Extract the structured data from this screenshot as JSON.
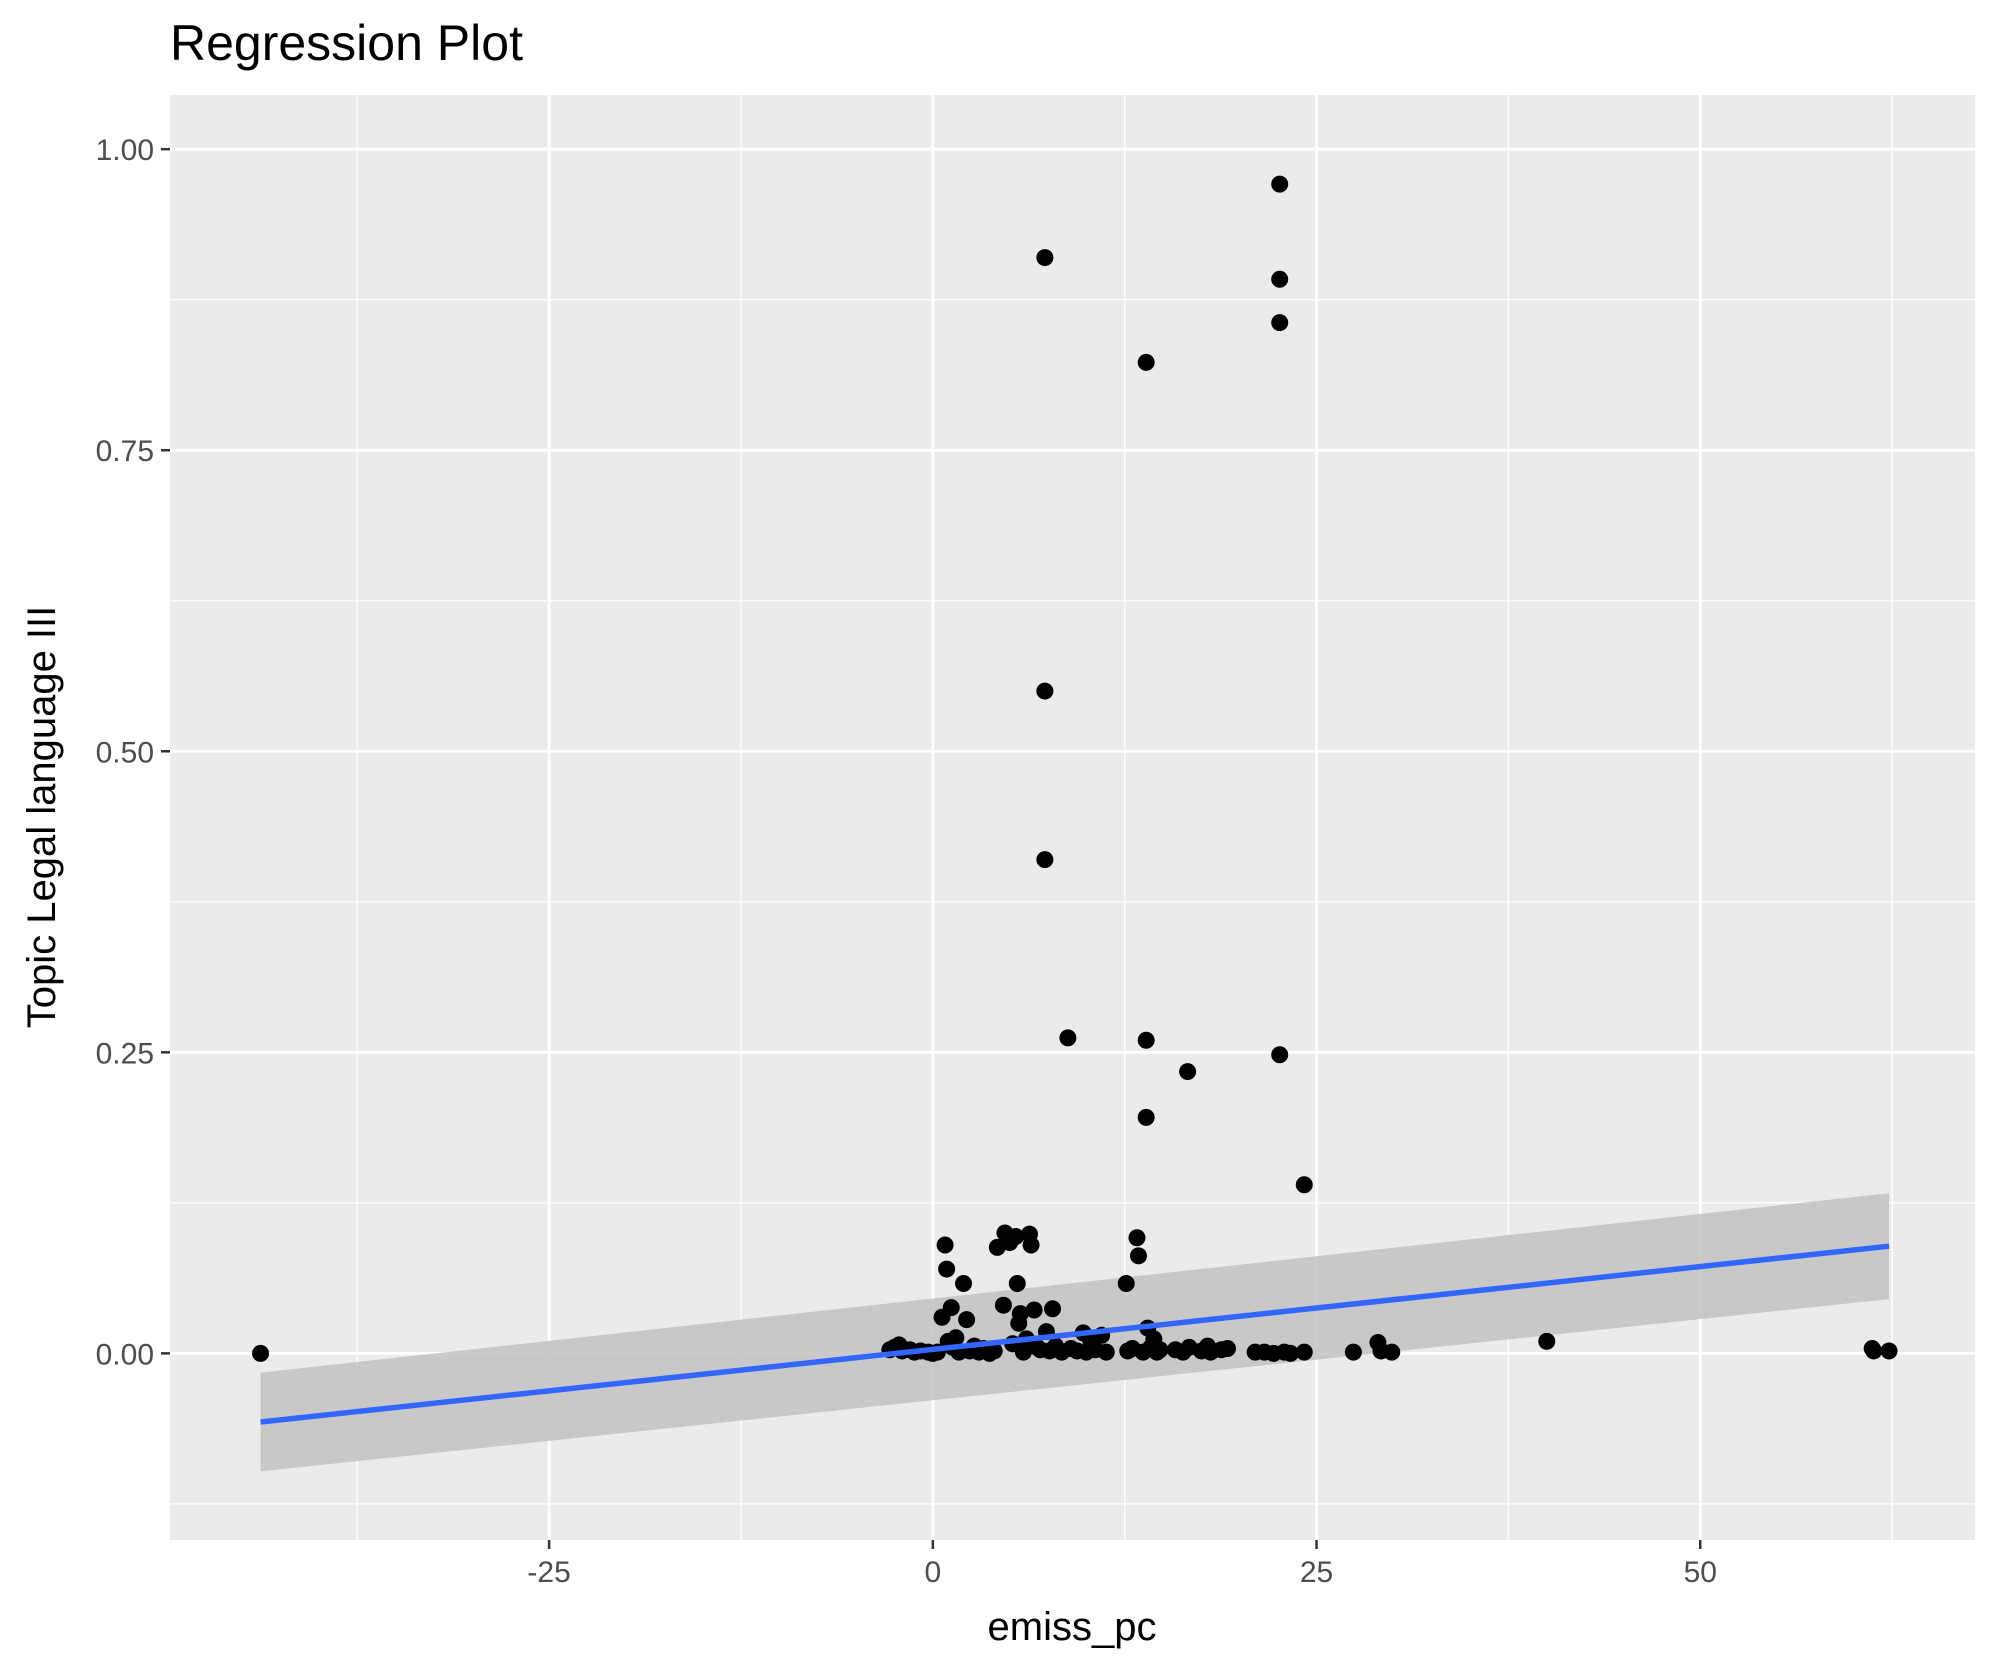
{
  "chart_data": {
    "type": "scatter",
    "title": "Regression Plot",
    "xlabel": "emiss_pc",
    "ylabel": "Topic Legal language III",
    "xlim": [
      -49.7,
      67.9
    ],
    "ylim": [
      -0.155,
      1.045
    ],
    "x_ticks": [
      -25,
      0,
      25,
      50
    ],
    "x_tick_labels": [
      "-25",
      "0",
      "25",
      "50"
    ],
    "x_minor_ticks": [
      -37.5,
      -12.5,
      12.5,
      37.5,
      62.5
    ],
    "y_ticks": [
      0,
      0.25,
      0.5,
      0.75,
      1
    ],
    "y_tick_labels": [
      "0.00",
      "0.25",
      "0.50",
      "0.75",
      "1.00"
    ],
    "y_minor_ticks": [
      -0.125,
      0.125,
      0.375,
      0.625,
      0.875
    ],
    "grid": true,
    "colors": {
      "panel_background": "#ebebeb",
      "grid_line": "#ffffff",
      "points": "#000000",
      "regression_line": "#3366ff",
      "confidence_band": "#c4c4c4"
    },
    "points": [
      {
        "x": -43.8,
        "y": 0.0
      },
      {
        "x": -2.8,
        "y": 0.003
      },
      {
        "x": -2.5,
        "y": 0.005
      },
      {
        "x": -2.2,
        "y": 0.007
      },
      {
        "x": -2.0,
        "y": 0.002
      },
      {
        "x": -1.5,
        "y": 0.003
      },
      {
        "x": -1.2,
        "y": 0.001
      },
      {
        "x": -0.8,
        "y": 0.002
      },
      {
        "x": -0.3,
        "y": 0.001
      },
      {
        "x": 0.0,
        "y": 0.0
      },
      {
        "x": 0.3,
        "y": 0.001
      },
      {
        "x": 0.6,
        "y": 0.03
      },
      {
        "x": 0.8,
        "y": 0.09
      },
      {
        "x": 0.9,
        "y": 0.07
      },
      {
        "x": 1.0,
        "y": 0.01
      },
      {
        "x": 1.2,
        "y": 0.038
      },
      {
        "x": 1.3,
        "y": 0.005
      },
      {
        "x": 1.5,
        "y": 0.013
      },
      {
        "x": 1.7,
        "y": 0.001
      },
      {
        "x": 2.0,
        "y": 0.058
      },
      {
        "x": 2.2,
        "y": 0.028
      },
      {
        "x": 2.4,
        "y": 0.002
      },
      {
        "x": 2.7,
        "y": 0.006
      },
      {
        "x": 3.0,
        "y": 0.001
      },
      {
        "x": 3.3,
        "y": 0.004
      },
      {
        "x": 3.7,
        "y": 0.0
      },
      {
        "x": 4.0,
        "y": 0.002
      },
      {
        "x": 4.2,
        "y": 0.088
      },
      {
        "x": 4.6,
        "y": 0.04
      },
      {
        "x": 4.7,
        "y": 0.1
      },
      {
        "x": 5.0,
        "y": 0.092
      },
      {
        "x": 5.2,
        "y": 0.008
      },
      {
        "x": 5.4,
        "y": 0.097
      },
      {
        "x": 5.5,
        "y": 0.058
      },
      {
        "x": 5.6,
        "y": 0.025
      },
      {
        "x": 5.7,
        "y": 0.033
      },
      {
        "x": 5.9,
        "y": 0.001
      },
      {
        "x": 6.1,
        "y": 0.012
      },
      {
        "x": 6.3,
        "y": 0.099
      },
      {
        "x": 6.4,
        "y": 0.09
      },
      {
        "x": 6.6,
        "y": 0.036
      },
      {
        "x": 6.8,
        "y": 0.005
      },
      {
        "x": 7.0,
        "y": 0.003
      },
      {
        "x": 7.3,
        "y": 0.91
      },
      {
        "x": 7.3,
        "y": 0.55
      },
      {
        "x": 7.3,
        "y": 0.41
      },
      {
        "x": 7.4,
        "y": 0.018
      },
      {
        "x": 7.6,
        "y": 0.002
      },
      {
        "x": 7.8,
        "y": 0.037
      },
      {
        "x": 8.0,
        "y": 0.006
      },
      {
        "x": 8.4,
        "y": 0.001
      },
      {
        "x": 8.8,
        "y": 0.262
      },
      {
        "x": 9.0,
        "y": 0.004
      },
      {
        "x": 9.4,
        "y": 0.002
      },
      {
        "x": 9.8,
        "y": 0.017
      },
      {
        "x": 10.0,
        "y": 0.001
      },
      {
        "x": 10.3,
        "y": 0.01
      },
      {
        "x": 10.6,
        "y": 0.003
      },
      {
        "x": 11.0,
        "y": 0.015
      },
      {
        "x": 11.3,
        "y": 0.001
      },
      {
        "x": 12.6,
        "y": 0.058
      },
      {
        "x": 12.7,
        "y": 0.002
      },
      {
        "x": 13.0,
        "y": 0.004
      },
      {
        "x": 13.3,
        "y": 0.096
      },
      {
        "x": 13.4,
        "y": 0.081
      },
      {
        "x": 13.7,
        "y": 0.001
      },
      {
        "x": 13.9,
        "y": 0.823
      },
      {
        "x": 13.9,
        "y": 0.26
      },
      {
        "x": 13.9,
        "y": 0.196
      },
      {
        "x": 14.0,
        "y": 0.021
      },
      {
        "x": 14.2,
        "y": 0.005
      },
      {
        "x": 14.4,
        "y": 0.012
      },
      {
        "x": 14.6,
        "y": 0.001
      },
      {
        "x": 14.8,
        "y": 0.003
      },
      {
        "x": 15.8,
        "y": 0.003
      },
      {
        "x": 16.3,
        "y": 0.001
      },
      {
        "x": 16.6,
        "y": 0.234
      },
      {
        "x": 16.7,
        "y": 0.005
      },
      {
        "x": 17.5,
        "y": 0.002
      },
      {
        "x": 17.9,
        "y": 0.006
      },
      {
        "x": 18.1,
        "y": 0.001
      },
      {
        "x": 18.8,
        "y": 0.003
      },
      {
        "x": 19.2,
        "y": 0.004
      },
      {
        "x": 21.0,
        "y": 0.001
      },
      {
        "x": 21.6,
        "y": 0.001
      },
      {
        "x": 22.2,
        "y": 0.0
      },
      {
        "x": 22.6,
        "y": 0.971
      },
      {
        "x": 22.6,
        "y": 0.892
      },
      {
        "x": 22.6,
        "y": 0.856
      },
      {
        "x": 22.6,
        "y": 0.248
      },
      {
        "x": 22.9,
        "y": 0.001
      },
      {
        "x": 23.3,
        "y": 0.0
      },
      {
        "x": 24.2,
        "y": 0.14
      },
      {
        "x": 24.2,
        "y": 0.001
      },
      {
        "x": 27.4,
        "y": 0.001
      },
      {
        "x": 29.0,
        "y": 0.009
      },
      {
        "x": 29.2,
        "y": 0.002
      },
      {
        "x": 29.9,
        "y": 0.001
      },
      {
        "x": 40.0,
        "y": 0.01
      },
      {
        "x": 61.2,
        "y": 0.004
      },
      {
        "x": 61.3,
        "y": 0.002
      },
      {
        "x": 62.3,
        "y": 0.002
      }
    ],
    "regression": {
      "x": [
        -43.8,
        62.3
      ],
      "y": [
        -0.057,
        0.089
      ],
      "ci_lower": [
        -0.098,
        0.045
      ],
      "ci_upper": [
        -0.016,
        0.133
      ]
    }
  }
}
